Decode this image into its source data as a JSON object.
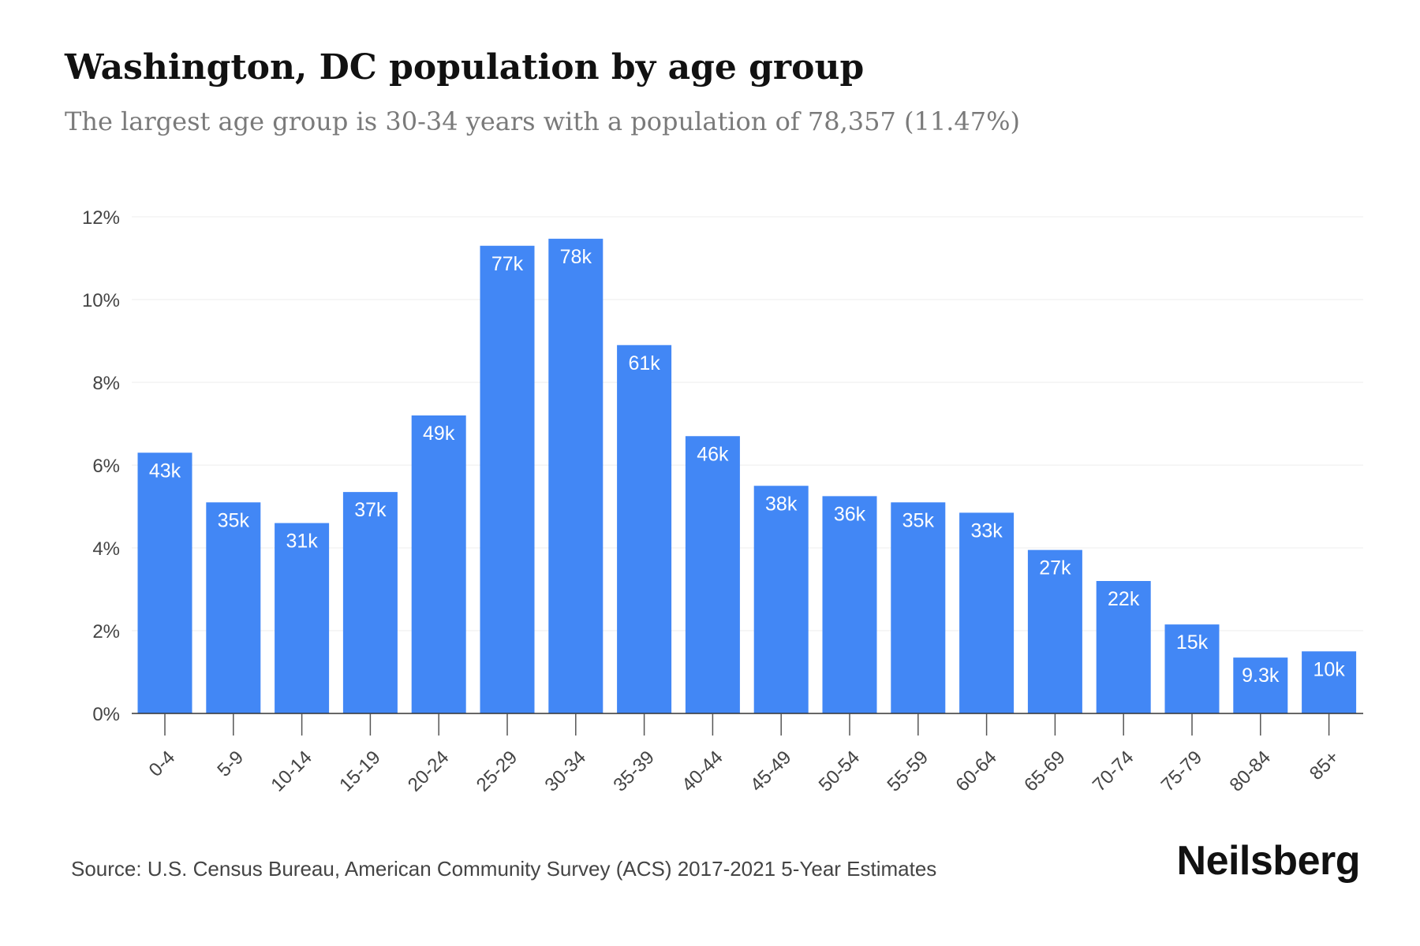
{
  "chart_data": {
    "type": "bar",
    "title": "Washington, DC population by age group",
    "subtitle": "The largest age group is 30-34 years with a population of 78,357 (11.47%)",
    "xlabel": "",
    "ylabel": "",
    "ylim": [
      0,
      12
    ],
    "yticks": [
      0,
      2,
      4,
      6,
      8,
      10,
      12
    ],
    "ytick_labels": [
      "0%",
      "2%",
      "4%",
      "6%",
      "8%",
      "10%",
      "12%"
    ],
    "grid": true,
    "categories": [
      "0-4",
      "5-9",
      "10-14",
      "15-19",
      "20-24",
      "25-29",
      "30-34",
      "35-39",
      "40-44",
      "45-49",
      "50-54",
      "55-59",
      "60-64",
      "65-69",
      "70-74",
      "75-79",
      "80-84",
      "85+"
    ],
    "values": [
      6.3,
      5.1,
      4.6,
      5.35,
      7.2,
      11.3,
      11.47,
      8.9,
      6.7,
      5.5,
      5.25,
      5.1,
      4.85,
      3.95,
      3.2,
      2.15,
      1.35,
      1.5
    ],
    "data_labels": [
      "43k",
      "35k",
      "31k",
      "37k",
      "49k",
      "77k",
      "78k",
      "61k",
      "46k",
      "38k",
      "36k",
      "35k",
      "33k",
      "27k",
      "22k",
      "15k",
      "9.3k",
      "10k"
    ],
    "bar_color": "#4287f5"
  },
  "footer": {
    "source": "Source: U.S. Census Bureau, American Community Survey (ACS) 2017-2021 5-Year Estimates",
    "brand": "Neilsberg"
  }
}
